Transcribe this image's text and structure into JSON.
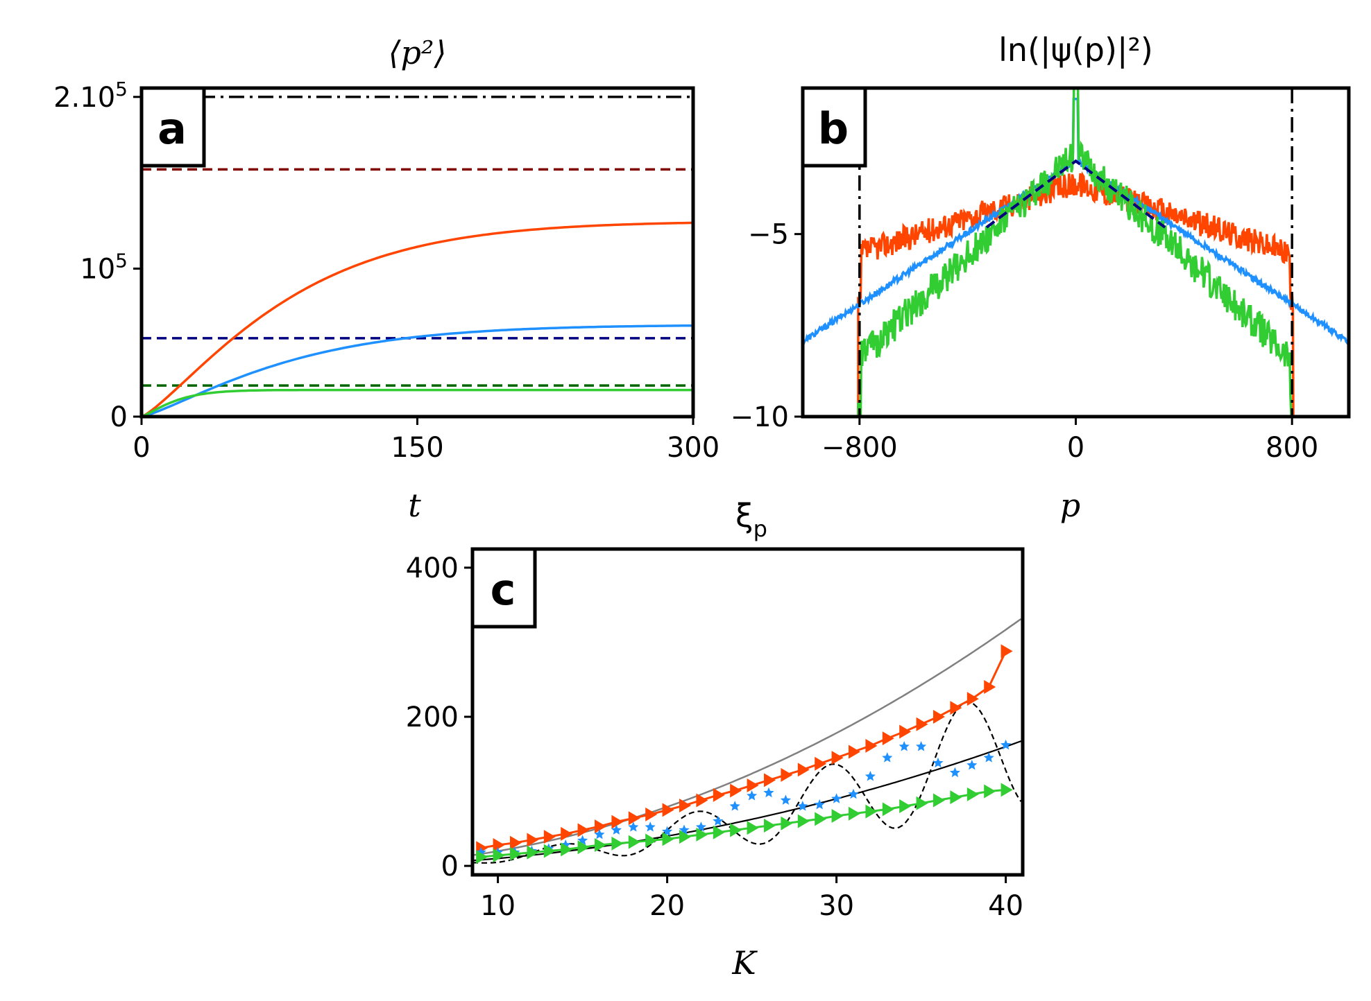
{
  "colors": {
    "orange": "#ff4500",
    "blue": "#1e90ff",
    "green": "#32cd32",
    "darkred": "#800000",
    "navy": "#000080",
    "darkgreen": "#006400",
    "gray": "#808080",
    "black": "#000000"
  },
  "chart_data": [
    {
      "panel": "a",
      "type": "line",
      "title": "⟨p²⟩",
      "xlabel": "t",
      "ylabel": "",
      "xlim": [
        0,
        300
      ],
      "ylim": [
        0,
        222000
      ],
      "xticks": [
        "0",
        "150",
        "300"
      ],
      "yticks": [
        {
          "value": 0,
          "label": "0"
        },
        {
          "value": 100000,
          "label": "10",
          "sup": "5"
        },
        {
          "value": 216000,
          "label": "2.10",
          "sup": "5"
        }
      ],
      "hlines": [
        {
          "y": 216000,
          "style": "dashdot",
          "color": "black"
        },
        {
          "y": 167000,
          "style": "dashed",
          "color": "darkred"
        },
        {
          "y": 53000,
          "style": "dashed",
          "color": "navy"
        },
        {
          "y": 21000,
          "style": "dashed",
          "color": "darkgreen"
        }
      ],
      "series": [
        {
          "name": "orange",
          "color": "orange",
          "saturation": 132000,
          "tau": 85
        },
        {
          "name": "blue",
          "color": "blue",
          "saturation": 62000,
          "tau": 85
        },
        {
          "name": "green",
          "color": "green",
          "saturation": 18000,
          "tau": 20
        }
      ]
    },
    {
      "panel": "b",
      "type": "line",
      "title": "ln(|ψ(p)|²)",
      "xlabel": "p",
      "ylabel": "",
      "xlim": [
        -1010,
        1010
      ],
      "ylim": [
        -10,
        -1.0
      ],
      "xticks": [
        {
          "value": -800,
          "label": "−800"
        },
        {
          "value": 0,
          "label": "0"
        },
        {
          "value": 800,
          "label": "800"
        }
      ],
      "yticks": [
        {
          "value": -5,
          "label": "−5"
        },
        {
          "value": -10,
          "label": "−10"
        }
      ],
      "vlines": [
        {
          "x": -800,
          "style": "dashdot",
          "color": "black"
        },
        {
          "x": 800,
          "style": "dashdot",
          "color": "black"
        }
      ],
      "series": [
        {
          "name": "orange",
          "color": "orange",
          "peak": -3.6,
          "slope": 0.0024,
          "cutoff": 805,
          "noise": 0.35
        },
        {
          "name": "blue",
          "color": "blue",
          "peak": -3.0,
          "slope": 0.0049,
          "cutoff": null,
          "noise": 0.08,
          "spike": -1.3
        },
        {
          "name": "green",
          "color": "green",
          "peak": -2.8,
          "slope": 0.007,
          "cutoff": 805,
          "noise": 0.45,
          "spike": -1.0
        },
        {
          "name": "fit",
          "color": "navy",
          "style": "dashed",
          "peak": -3.0,
          "slope": 0.0055,
          "range": [
            -330,
            330
          ]
        }
      ]
    },
    {
      "panel": "c",
      "type": "scatter",
      "title": "ξ_p",
      "xlabel": "K",
      "ylabel": "",
      "xlim": [
        8.5,
        41
      ],
      "ylim": [
        -12,
        425
      ],
      "xticks": [
        10,
        20,
        30,
        40
      ],
      "yticks": [
        0,
        200,
        400
      ],
      "series": [
        {
          "name": "orange",
          "color": "orange",
          "marker": "triangle-right",
          "x": [
            9,
            10,
            11,
            12,
            13,
            14,
            15,
            16,
            17,
            18,
            19,
            20,
            21,
            22,
            23,
            24,
            25,
            26,
            27,
            28,
            29,
            30,
            31,
            32,
            33,
            34,
            35,
            36,
            37,
            38,
            39,
            40
          ],
          "y": [
            24,
            28,
            31,
            35,
            39,
            43,
            48,
            53,
            59,
            64,
            69,
            75,
            81,
            88,
            95,
            101,
            108,
            115,
            122,
            129,
            137,
            145,
            153,
            161,
            171,
            180,
            190,
            200,
            212,
            224,
            240,
            288
          ]
        },
        {
          "name": "blue",
          "color": "blue",
          "marker": "star",
          "x": [
            9,
            10,
            11,
            12,
            13,
            14,
            15,
            16,
            17,
            18,
            19,
            20,
            21,
            22,
            23,
            24,
            25,
            26,
            27,
            28,
            29,
            30,
            31,
            32,
            33,
            34,
            35,
            36,
            37,
            38,
            39,
            40
          ],
          "y": [
            18,
            18,
            18,
            20,
            23,
            28,
            34,
            42,
            48,
            52,
            52,
            46,
            48,
            52,
            60,
            80,
            94,
            98,
            88,
            80,
            82,
            90,
            96,
            120,
            145,
            160,
            160,
            138,
            125,
            135,
            145,
            162
          ]
        },
        {
          "name": "green",
          "color": "green",
          "marker": "triangle-right",
          "x": [
            9,
            10,
            11,
            12,
            13,
            14,
            15,
            16,
            17,
            18,
            19,
            20,
            21,
            22,
            23,
            24,
            25,
            26,
            27,
            28,
            29,
            30,
            31,
            32,
            33,
            34,
            35,
            36,
            37,
            38,
            39,
            40
          ],
          "y": [
            12,
            14,
            16,
            18,
            20,
            22,
            25,
            28,
            30,
            32,
            34,
            36,
            39,
            42,
            45,
            48,
            51,
            54,
            57,
            60,
            63,
            67,
            70,
            73,
            76,
            80,
            84,
            88,
            92,
            96,
            100,
            102
          ]
        },
        {
          "name": "gray curve",
          "color": "gray",
          "style": "solid"
        },
        {
          "name": "black line",
          "color": "black",
          "style": "solid"
        },
        {
          "name": "black dashed",
          "color": "black",
          "style": "dashed"
        }
      ]
    }
  ]
}
